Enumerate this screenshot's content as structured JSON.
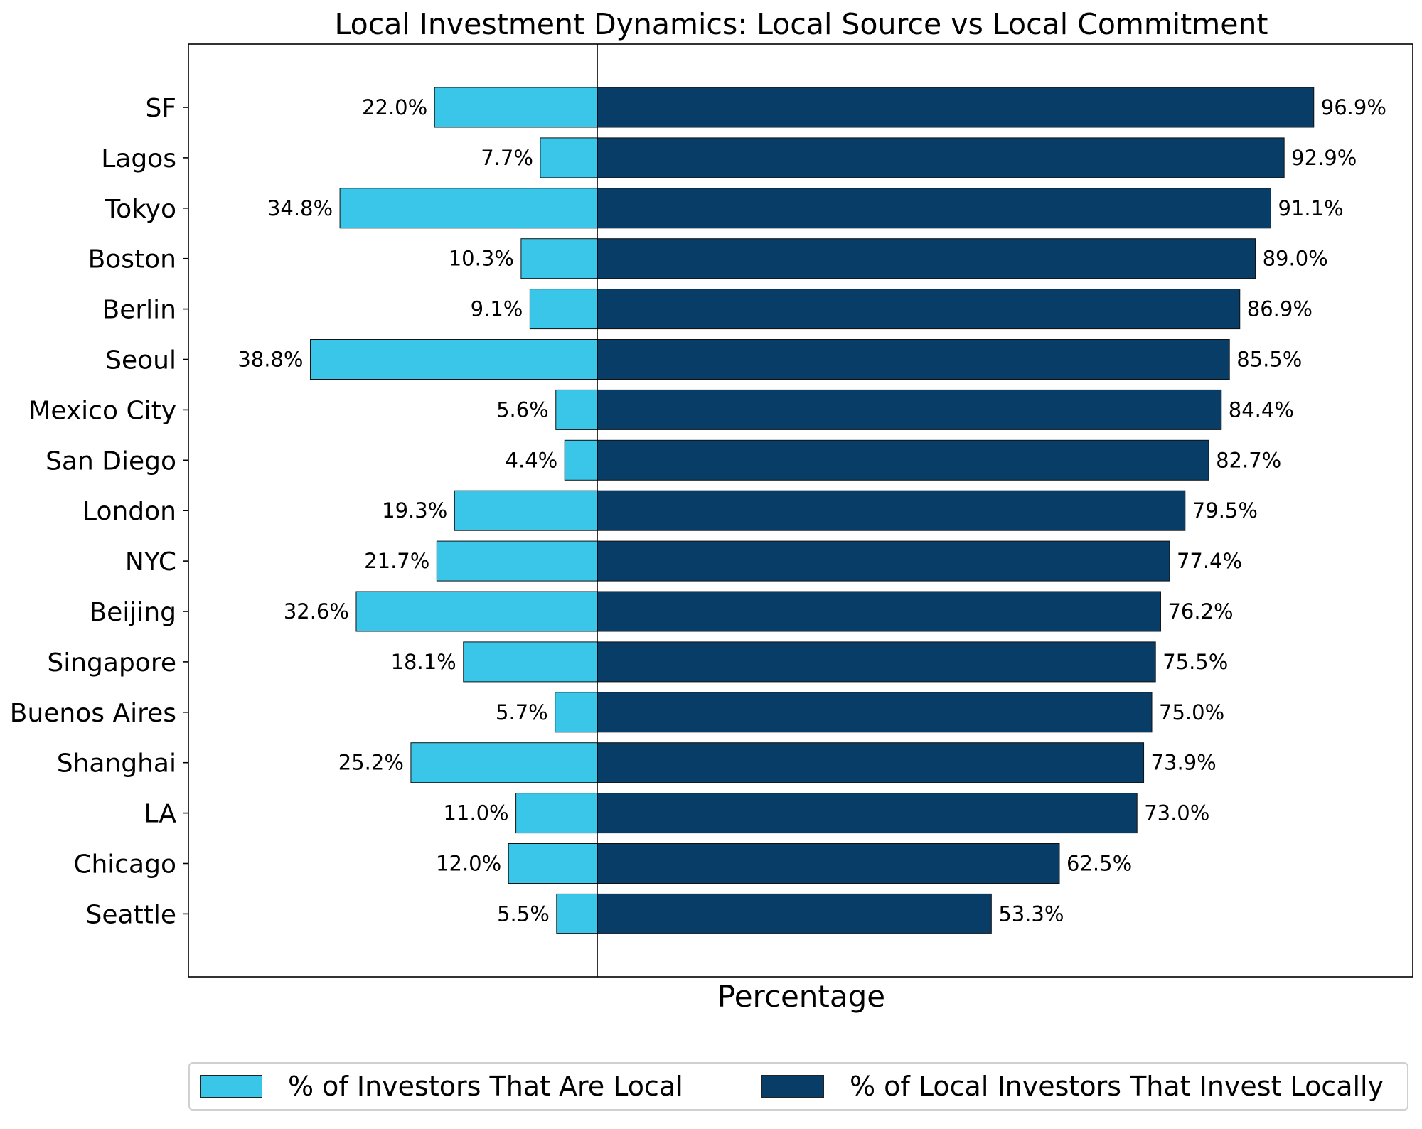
{
  "colors": {
    "local": "#3AC6E8",
    "commit": "#073D67"
  },
  "chart_data": {
    "type": "bar",
    "orientation": "horizontal-diverging",
    "title": "Local Investment Dynamics: Local Source vs Local Commitment",
    "xlabel": "Percentage",
    "ylabel": "",
    "xlim": [
      -50,
      100
    ],
    "grid": false,
    "legend_position": "bottom",
    "categories": [
      "SF",
      "Lagos",
      "Tokyo",
      "Boston",
      "Berlin",
      "Seoul",
      "Mexico City",
      "San Diego",
      "London",
      "NYC",
      "Beijing",
      "Singapore",
      "Buenos Aires",
      "Shanghai",
      "LA",
      "Chicago",
      "Seattle"
    ],
    "series": [
      {
        "name": "% of Investors That Are Local",
        "direction": "left",
        "values": [
          22.0,
          7.7,
          34.8,
          10.3,
          9.1,
          38.8,
          5.6,
          4.4,
          19.3,
          21.7,
          32.6,
          18.1,
          5.7,
          25.2,
          11.0,
          12.0,
          5.5
        ],
        "labels": [
          "22.0%",
          "7.7%",
          "34.8%",
          "10.3%",
          "9.1%",
          "38.8%",
          "5.6%",
          "4.4%",
          "19.3%",
          "21.7%",
          "32.6%",
          "18.1%",
          "5.7%",
          "25.2%",
          "11.0%",
          "12.0%",
          "5.5%"
        ]
      },
      {
        "name": "% of Local Investors That Invest Locally",
        "direction": "right",
        "values": [
          96.9,
          92.9,
          91.1,
          89.0,
          86.9,
          85.5,
          84.4,
          82.7,
          79.5,
          77.4,
          76.2,
          75.5,
          75.0,
          73.9,
          73.0,
          62.5,
          53.3
        ],
        "labels": [
          "96.9%",
          "92.9%",
          "91.1%",
          "89.0%",
          "86.9%",
          "85.5%",
          "84.4%",
          "82.7%",
          "79.5%",
          "77.4%",
          "76.2%",
          "75.5%",
          "75.0%",
          "73.9%",
          "73.0%",
          "62.5%",
          "53.3%"
        ]
      }
    ]
  }
}
